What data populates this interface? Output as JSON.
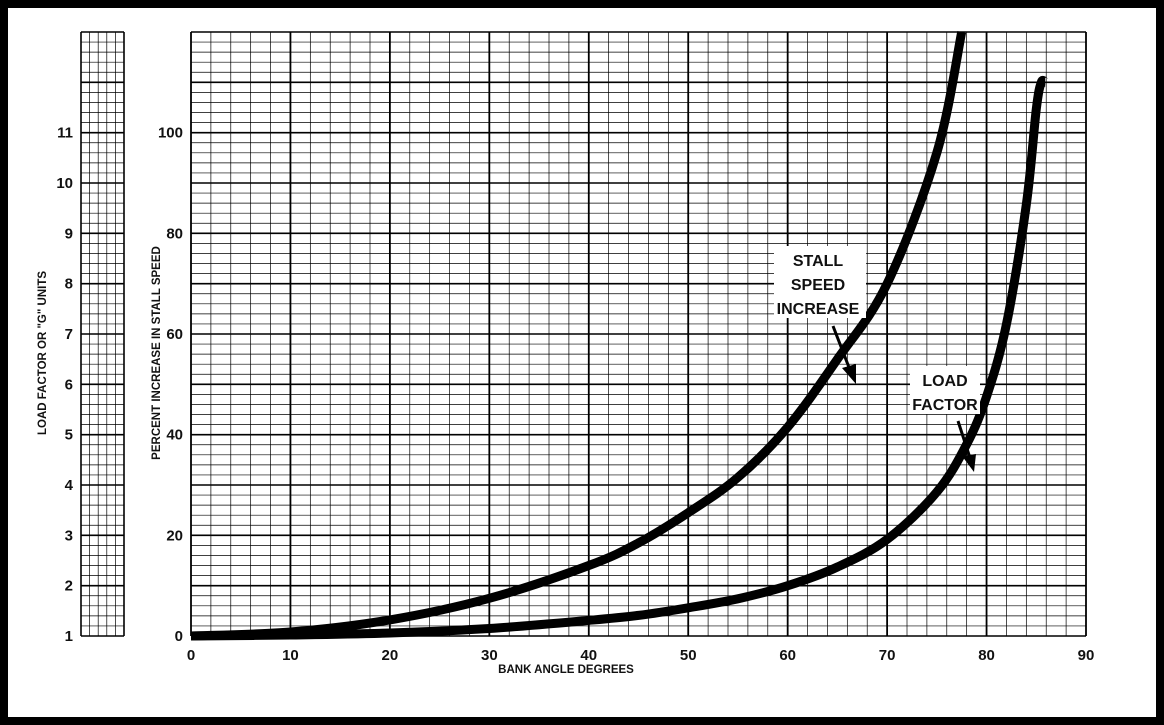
{
  "chart_data": {
    "type": "line",
    "title": "",
    "xlabel": "BANK ANGLE DEGREES",
    "ylabel": "PERCENT INCREASE IN STALL SPEED",
    "y2label": "LOAD FACTOR OR \"G\" UNITS",
    "xlim": [
      0,
      90
    ],
    "ylim": [
      0,
      120
    ],
    "y2lim": [
      1,
      12
    ],
    "x_ticks": [
      "0",
      "10",
      "20",
      "30",
      "40",
      "50",
      "60",
      "70",
      "80",
      "90"
    ],
    "y_ticks": [
      "0",
      "20",
      "40",
      "60",
      "80",
      "100"
    ],
    "y2_ticks": [
      "1",
      "2",
      "3",
      "4",
      "5",
      "6",
      "7",
      "8",
      "9",
      "10",
      "11"
    ],
    "grid": true,
    "series": [
      {
        "name": "STALL SPEED INCREASE",
        "axis": "left",
        "x": [
          0,
          10,
          20,
          30,
          40,
          45,
          50,
          55,
          60,
          65,
          70,
          75,
          77.5
        ],
        "y": [
          0,
          0.8,
          3.2,
          7.5,
          14,
          18.5,
          24.5,
          31.5,
          41.5,
          55,
          70,
          96,
          120
        ]
      },
      {
        "name": "LOAD FACTOR",
        "axis": "right",
        "x": [
          0,
          10,
          20,
          30,
          40,
          45,
          50,
          55,
          60,
          65,
          70,
          75,
          78,
          80,
          82,
          84,
          85,
          85.5,
          85.9
        ],
        "y": [
          1,
          1.02,
          1.06,
          1.15,
          1.31,
          1.41,
          1.56,
          1.74,
          2.0,
          2.37,
          2.92,
          3.86,
          4.81,
          5.76,
          7.19,
          9.57,
          11.47,
          12.0,
          12.0
        ]
      }
    ],
    "annotations": [
      {
        "lines": [
          "STALL",
          "SPEED",
          "INCREASE"
        ],
        "target": "STALL SPEED INCREASE"
      },
      {
        "lines": [
          "LOAD",
          "FACTOR"
        ],
        "target": "LOAD FACTOR"
      }
    ]
  }
}
